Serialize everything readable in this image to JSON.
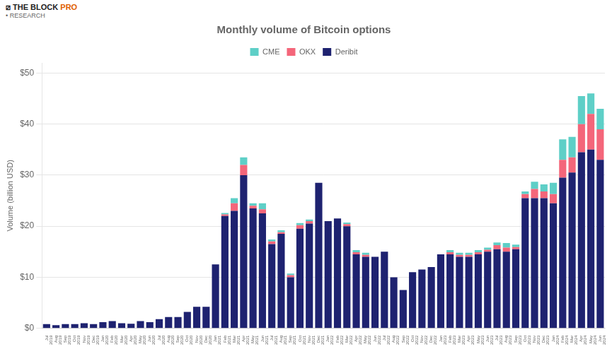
{
  "chart_data": {
    "type": "bar",
    "title": "Monthly volume of Bitcoin options",
    "y_label": "Volume (billion USD)",
    "stacked": true,
    "grid": true,
    "legend": "top",
    "annotations": [
      {
        "text": "⧄ THE BLOCK",
        "color": "#222222"
      },
      {
        "text": "PRO",
        "color": "#e06000"
      },
      {
        "text": "• RESEARCH",
        "color": "#666666"
      }
    ],
    "categories": [
      "Jul\n2019",
      "Aug\n2019",
      "Sep\n2019",
      "Oct\n2019",
      "Nov\n2019",
      "Dec\n2019",
      "Jan\n2020",
      "Feb\n2020",
      "Mar\n2020",
      "Apr\n2020",
      "May\n2020",
      "Jun\n2020",
      "Jul\n2020",
      "Aug\n2020",
      "Sep\n2020",
      "Oct\n2020",
      "Nov\n2020",
      "Dec\n2020",
      "Jan\n2021",
      "Feb\n2021",
      "Mar\n2021",
      "Apr\n2021",
      "May\n2021",
      "Jun\n2021",
      "Jul\n2021",
      "Aug\n2021",
      "Sep\n2021",
      "Oct\n2021",
      "Nov\n2021",
      "Dec\n2021",
      "Jan\n2022",
      "Feb\n2022",
      "Mar\n2022",
      "Apr\n2022",
      "May\n2022",
      "Jun\n2022",
      "Jul\n2022",
      "Aug\n2022",
      "Sep\n2022",
      "Oct\n2022",
      "Nov\n2022",
      "Dec\n2022",
      "Jan\n2023",
      "Feb\n2023",
      "Mar\n2023",
      "Apr\n2023",
      "May\n2023",
      "Jun\n2023",
      "Jul\n2023",
      "Aug\n2023",
      "Sep\n2023",
      "Oct\n2023",
      "Nov\n2023",
      "Dec\n2023",
      "Jan\n2024",
      "Feb\n2024",
      "Mar\n2024",
      "Apr\n2024",
      "May\n2024",
      "Jun\n2024"
    ],
    "series": [
      {
        "name": "Deribit",
        "color": "#1e2270",
        "values": [
          0.8,
          0.6,
          0.8,
          0.8,
          1.0,
          0.8,
          1.2,
          1.4,
          1.0,
          0.9,
          1.4,
          1.2,
          1.8,
          2.2,
          2.2,
          3.2,
          4.2,
          4.2,
          12.5,
          22.0,
          23.0,
          30.0,
          23.5,
          22.5,
          16.5,
          18.5,
          10.0,
          19.5,
          20.5,
          28.5,
          21.0,
          21.5,
          20.0,
          14.5,
          14.0,
          14.0,
          15.0,
          10.0,
          7.5,
          11.0,
          11.5,
          12.0,
          14.5,
          14.5,
          14.0,
          14.0,
          14.5,
          15.0,
          15.5,
          15.0,
          15.5,
          25.5,
          25.5,
          25.5,
          24.5,
          29.5,
          30.5,
          34.5,
          35.0,
          33.0
        ]
      },
      {
        "name": "OKX",
        "color": "#f4667a",
        "values": [
          0.0,
          0.0,
          0.0,
          0.0,
          0.0,
          0.0,
          0.0,
          0.0,
          0.0,
          0.0,
          0.0,
          0.0,
          0.0,
          0.0,
          0.0,
          0.0,
          0.0,
          0.0,
          0.0,
          0.3,
          1.5,
          2.0,
          0.5,
          0.8,
          0.5,
          0.3,
          0.4,
          0.7,
          0.5,
          0.0,
          0.0,
          0.0,
          0.4,
          0.4,
          0.4,
          0.0,
          0.0,
          0.0,
          0.0,
          0.0,
          0.0,
          0.0,
          0.0,
          0.4,
          0.4,
          0.4,
          0.4,
          0.4,
          0.8,
          0.8,
          0.4,
          0.8,
          1.8,
          1.3,
          1.8,
          3.5,
          3.0,
          5.5,
          7.0,
          6.0
        ]
      },
      {
        "name": "CME",
        "color": "#5ecfc7",
        "values": [
          0.0,
          0.0,
          0.0,
          0.0,
          0.0,
          0.0,
          0.0,
          0.0,
          0.0,
          0.0,
          0.0,
          0.0,
          0.0,
          0.0,
          0.0,
          0.0,
          0.0,
          0.0,
          0.0,
          0.3,
          1.0,
          1.5,
          0.5,
          1.2,
          0.4,
          0.4,
          0.3,
          0.4,
          0.3,
          0.0,
          0.0,
          0.0,
          0.3,
          0.4,
          0.4,
          0.0,
          0.0,
          0.0,
          0.0,
          0.0,
          0.0,
          0.0,
          0.0,
          0.4,
          0.4,
          0.4,
          0.4,
          0.4,
          0.5,
          0.9,
          0.5,
          0.5,
          1.4,
          1.4,
          2.2,
          4.0,
          4.0,
          5.5,
          4.0,
          4.0
        ]
      }
    ],
    "ylim": [
      0,
      52
    ],
    "yticks": [
      {
        "value": 0,
        "label": "$0"
      },
      {
        "value": 10,
        "label": "$10"
      },
      {
        "value": 20,
        "label": "$20"
      },
      {
        "value": 30,
        "label": "$30"
      },
      {
        "value": 40,
        "label": "$40"
      },
      {
        "value": 50,
        "label": "$50"
      }
    ]
  }
}
